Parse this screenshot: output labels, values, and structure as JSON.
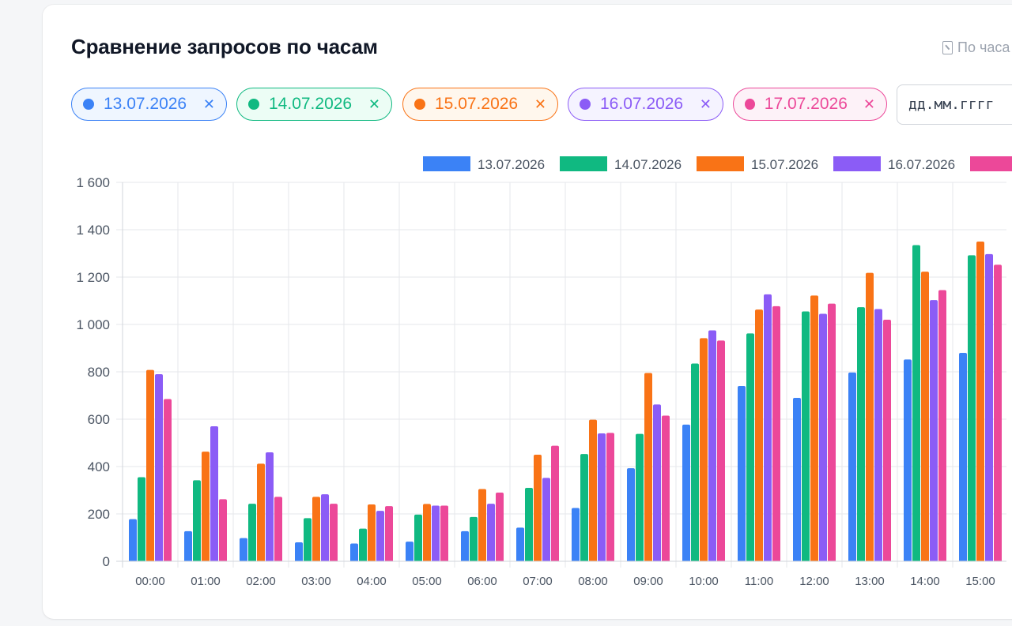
{
  "title": "Сравнение запросов по часам",
  "view_toggle": {
    "icon": "hourglass-icon",
    "label": "По часа"
  },
  "chips": [
    {
      "label": "13.07.2026",
      "color": "#3b82f6",
      "bg": "#eff6ff",
      "remove": "✕"
    },
    {
      "label": "14.07.2026",
      "color": "#10b981",
      "bg": "#ecfdf5",
      "remove": "✕"
    },
    {
      "label": "15.07.2026",
      "color": "#f97316",
      "bg": "#fff7ed",
      "remove": "✕"
    },
    {
      "label": "16.07.2026",
      "color": "#8b5cf6",
      "bg": "#f5f3ff",
      "remove": "✕"
    },
    {
      "label": "17.07.2026",
      "color": "#ec4899",
      "bg": "#fdf2f8",
      "remove": "✕"
    }
  ],
  "date_input": {
    "placeholder": "дд.мм.гггг"
  },
  "chart_data": {
    "type": "bar",
    "categories": [
      "00:00",
      "01:00",
      "02:00",
      "03:00",
      "04:00",
      "05:00",
      "06:00",
      "07:00",
      "08:00",
      "09:00",
      "10:00",
      "11:00",
      "12:00",
      "13:00",
      "14:00",
      "15:00"
    ],
    "ylim": [
      0,
      1600
    ],
    "yticks": [
      0,
      200,
      400,
      600,
      800,
      1000,
      1200,
      1400,
      1600
    ],
    "ytick_labels": [
      "0",
      "200",
      "400",
      "600",
      "800",
      "1 000",
      "1 200",
      "1 400",
      "1 600"
    ],
    "grid": true,
    "legend_position": "top",
    "series": [
      {
        "name": "13.07.2026",
        "color": "#3b82f6",
        "values": [
          178,
          127,
          98,
          80,
          75,
          83,
          127,
          142,
          225,
          393,
          577,
          740,
          690,
          797,
          852,
          880
        ]
      },
      {
        "name": "14.07.2026",
        "color": "#10b981",
        "values": [
          355,
          342,
          243,
          182,
          138,
          197,
          187,
          310,
          453,
          538,
          835,
          962,
          1055,
          1073,
          1335,
          1292
        ]
      },
      {
        "name": "15.07.2026",
        "color": "#f97316",
        "values": [
          808,
          463,
          412,
          272,
          240,
          242,
          305,
          450,
          598,
          795,
          942,
          1063,
          1122,
          1218,
          1223,
          1350
        ]
      },
      {
        "name": "16.07.2026",
        "color": "#8b5cf6",
        "values": [
          790,
          570,
          460,
          283,
          213,
          235,
          243,
          352,
          540,
          662,
          975,
          1127,
          1045,
          1065,
          1103,
          1297
        ]
      },
      {
        "name": "17.07.2026",
        "color": "#ec4899",
        "values": [
          685,
          262,
          272,
          243,
          233,
          235,
          290,
          488,
          542,
          615,
          932,
          1077,
          1088,
          1020,
          1145,
          1252
        ]
      }
    ]
  }
}
